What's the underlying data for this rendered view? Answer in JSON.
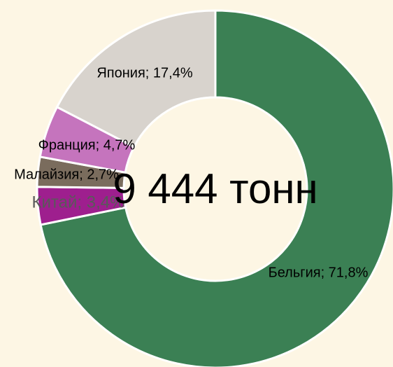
{
  "chart_data": {
    "type": "donut",
    "center_label": "9 444 тонн",
    "categories": [
      "Бельгия",
      "Китай",
      "Малайзия",
      "Франция",
      "Япония"
    ],
    "values": [
      71.8,
      3.4,
      2.7,
      4.7,
      17.4
    ],
    "value_labels": [
      "Бельгия; 71,8%",
      "Китай; 3,4%",
      "Малайзия; 2,7%",
      "Франция; 4,7%",
      "Япония; 17,4%"
    ],
    "colors": [
      "#3b8054",
      "#9e1f8e",
      "#7a6c5d",
      "#c574bd",
      "#d8d3cd"
    ]
  }
}
